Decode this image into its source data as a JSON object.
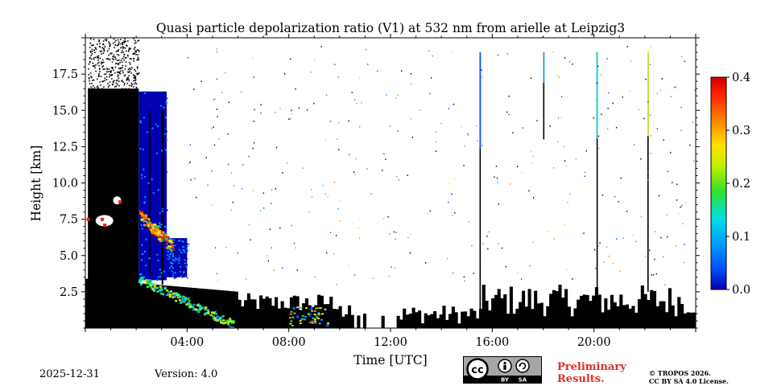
{
  "chart_data": {
    "type": "heatmap",
    "title": "Quasi particle depolarization ratio (V1) at 532 nm from arielle at Leipzig3",
    "xlabel": "Time [UTC]",
    "ylabel": "Height [km]",
    "xlim": [
      0,
      24
    ],
    "ylim": [
      0,
      20
    ],
    "x_ticks": [
      {
        "value": 4,
        "label": "04:00"
      },
      {
        "value": 8,
        "label": "08:00"
      },
      {
        "value": 12,
        "label": "12:00"
      },
      {
        "value": 16,
        "label": "16:00"
      },
      {
        "value": 20,
        "label": "20:00"
      }
    ],
    "y_ticks": [
      {
        "value": 2.5,
        "label": "2.5"
      },
      {
        "value": 5.0,
        "label": "5.0"
      },
      {
        "value": 7.5,
        "label": "7.5"
      },
      {
        "value": 10.0,
        "label": "10.0"
      },
      {
        "value": 12.5,
        "label": "12.5"
      },
      {
        "value": 15.0,
        "label": "15.0"
      },
      {
        "value": 17.5,
        "label": "17.5"
      }
    ],
    "colorbar": {
      "range": [
        0.0,
        0.4
      ],
      "ticks": [
        {
          "value": 0.0,
          "label": "0.0"
        },
        {
          "value": 0.1,
          "label": "0.1"
        },
        {
          "value": 0.2,
          "label": "0.2"
        },
        {
          "value": 0.3,
          "label": "0.3"
        },
        {
          "value": 0.4,
          "label": "0.4"
        }
      ],
      "colormap": [
        "#0000b0",
        "#0050ff",
        "#00a0ff",
        "#00e0e0",
        "#30e030",
        "#c0f000",
        "#ffe000",
        "#ff8000",
        "#ff2000",
        "#d00000"
      ]
    },
    "features": [
      {
        "name": "low-signal region",
        "x": [
          0.1,
          2.1
        ],
        "y": [
          0,
          20
        ],
        "value": "black"
      },
      {
        "name": "blue depol layer",
        "x": [
          2.1,
          3.2
        ],
        "y": [
          3.3,
          16.3
        ],
        "value": 0.02
      },
      {
        "name": "blue depol layer",
        "x": [
          3.2,
          4.0
        ],
        "y": [
          3.5,
          6.2
        ],
        "value": 0.03
      },
      {
        "name": "aerosol layer top",
        "x": [
          2.1,
          3.4
        ],
        "y": [
          5.6,
          7.8
        ],
        "value": 0.3
      },
      {
        "name": "aerosol layer slope",
        "x": [
          2.1,
          5.8
        ],
        "y": [
          0.3,
          3.4
        ],
        "value": 0.15
      },
      {
        "name": "cloud fragments",
        "x": [
          0.4,
          1.3
        ],
        "y": [
          7.2,
          8.8
        ],
        "value": 0.35
      },
      {
        "name": "boundary layer",
        "x": [
          0,
          24
        ],
        "y": [
          0,
          2.8
        ],
        "value": "black"
      },
      {
        "name": "vertical stripe",
        "x": [
          15.5,
          15.5
        ],
        "y": [
          0,
          19
        ],
        "value": 0.05
      },
      {
        "name": "vertical stripe",
        "x": [
          18.0,
          18.0
        ],
        "y": [
          13,
          19
        ],
        "value": 0.1
      },
      {
        "name": "vertical stripe",
        "x": [
          20.1,
          20.1
        ],
        "y": [
          2,
          19
        ],
        "value": 0.15
      },
      {
        "name": "vertical stripe",
        "x": [
          22.1,
          22.1
        ],
        "y": [
          2.5,
          19
        ],
        "value": 0.2
      }
    ]
  },
  "footer": {
    "date": "2025-12-31",
    "version": "Version: 4.0",
    "preliminary_line1": "Preliminary",
    "preliminary_line2": "Results.",
    "copyright_line1": "© TROPOS 2026.",
    "copyright_line2": "CC BY SA 4.0 License.",
    "license_badge": {
      "cc": "cc",
      "by": "BY",
      "sa": "SA"
    }
  }
}
